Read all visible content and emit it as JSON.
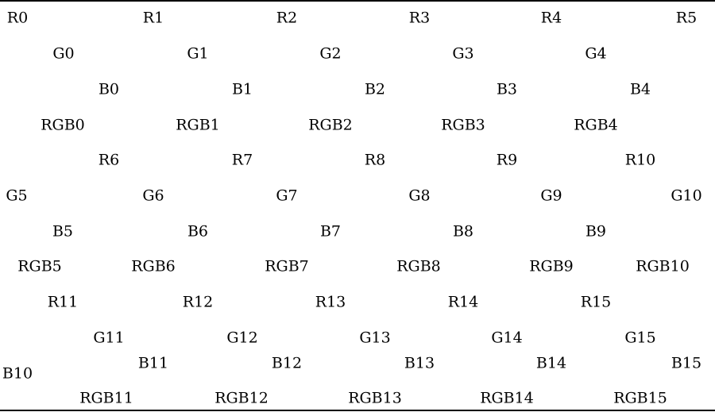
{
  "rows": [
    {
      "id": "row-r-0",
      "labels": [
        "R0",
        "R1",
        "R2",
        "R3",
        "R4",
        "R5"
      ]
    },
    {
      "id": "row-g-0",
      "labels": [
        "G0",
        "G1",
        "G2",
        "G3",
        "G4"
      ]
    },
    {
      "id": "row-b-0",
      "labels": [
        "B0",
        "B1",
        "B2",
        "B3",
        "B4"
      ]
    },
    {
      "id": "row-rgb-0",
      "labels": [
        "RGB0",
        "RGB1",
        "RGB2",
        "RGB3",
        "RGB4"
      ]
    },
    {
      "id": "row-r-1",
      "labels": [
        "R6",
        "R7",
        "R8",
        "R9",
        "R10"
      ]
    },
    {
      "id": "row-g-1",
      "labels": [
        "G5",
        "G6",
        "G7",
        "G8",
        "G9",
        "G10"
      ]
    },
    {
      "id": "row-b-1",
      "labels": [
        "B5",
        "B6",
        "B7",
        "B8",
        "B9"
      ]
    },
    {
      "id": "row-rgb-1",
      "labels": [
        "RGB5",
        "RGB6",
        "RGB7",
        "RGB8",
        "RGB9",
        "RGB10"
      ]
    },
    {
      "id": "row-r-2",
      "labels": [
        "R11",
        "R12",
        "R13",
        "R14",
        "R15"
      ]
    },
    {
      "id": "row-g-2",
      "labels": [
        "G11",
        "G12",
        "G13",
        "G14",
        "G15"
      ]
    },
    {
      "id": "row-b-2",
      "labels": [
        "B11",
        "B12",
        "B13",
        "B14",
        "B15"
      ]
    },
    {
      "id": "row-b-extra",
      "labels": [
        "B10"
      ]
    },
    {
      "id": "row-rgb-2",
      "labels": [
        "RGB11",
        "RGB12",
        "RGB13",
        "RGB14",
        "RGB15"
      ]
    }
  ]
}
